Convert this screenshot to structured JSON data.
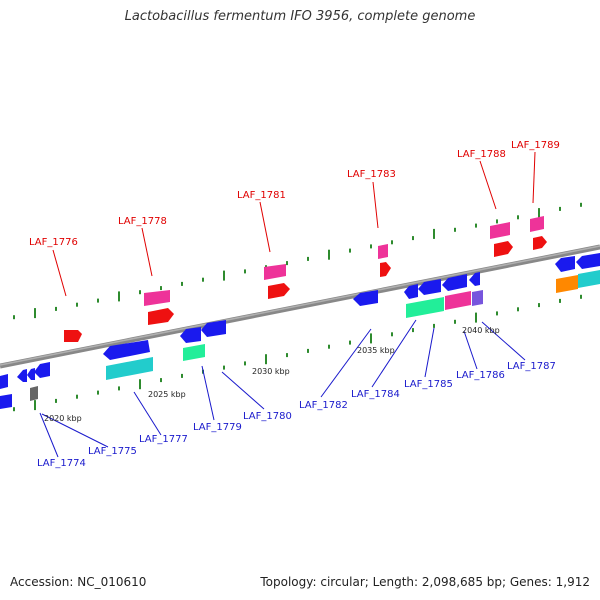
{
  "title": "Lactobacillus fermentum IFO 3956, complete genome",
  "footer": {
    "accession": "Accession: NC_010610",
    "summary": "Topology: circular; Length: 2,098,685 bp; Genes: 1,912"
  },
  "colors": {
    "backbone": "#7a7a7a",
    "forward_label": "#e00000",
    "reverse_label": "#1a1acc",
    "tick": "#2e8b2e",
    "blue": "#1a1aee",
    "red": "#ee1111",
    "pink": "#ee3399",
    "cyan": "#22cccc",
    "green": "#22ee99",
    "orange": "#ff8800",
    "purple": "#7755dd",
    "gray": "#666666"
  },
  "scale_labels": [
    "2020 kbp",
    "2025 kbp",
    "2030 kbp",
    "2035 kbp",
    "2040 kbp"
  ],
  "forward_genes": [
    "LAF_1776",
    "LAF_1778",
    "LAF_1781",
    "LAF_1783",
    "LAF_1788",
    "LAF_1789"
  ],
  "reverse_genes": [
    "LAF_1774",
    "LAF_1775",
    "LAF_1777",
    "LAF_1779",
    "LAF_1780",
    "LAF_1782",
    "LAF_1784",
    "LAF_1785",
    "LAF_1786",
    "LAF_1787"
  ]
}
